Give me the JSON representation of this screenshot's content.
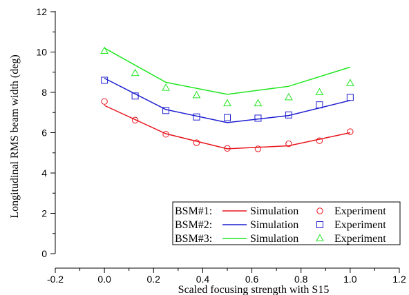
{
  "chart_data": {
    "type": "line",
    "xlabel": "Scaled focusing strength with S15",
    "ylabel": "Longitudinal RMS beam width (deg)",
    "xlim": [
      -0.2,
      1.2
    ],
    "ylim": [
      0,
      12
    ],
    "x_ticks": [
      "-0.2",
      "0.0",
      "0.2",
      "0.4",
      "0.6",
      "0.8",
      "1.0",
      "1.2"
    ],
    "y_ticks": [
      "0",
      "2",
      "4",
      "6",
      "8",
      "10",
      "12"
    ],
    "grid": false,
    "legend_position": "bottom-right",
    "series": [
      {
        "name": "BSM#1:",
        "color": "#e8141c",
        "marker": "circle",
        "line_label": "Simulation",
        "marker_label": "Experiment",
        "simulation": {
          "x": [
            0.0,
            0.25,
            0.5,
            0.75,
            1.0
          ],
          "y": [
            7.35,
            5.95,
            5.2,
            5.35,
            6.0
          ]
        },
        "experiment": {
          "x": [
            0.0,
            0.125,
            0.25,
            0.375,
            0.5,
            0.625,
            0.75,
            0.875,
            1.0
          ],
          "y": [
            7.55,
            6.62,
            5.92,
            5.5,
            5.22,
            5.2,
            5.45,
            5.6,
            6.05
          ]
        }
      },
      {
        "name": "BSM#2:",
        "color": "#1c1cd0",
        "marker": "square",
        "line_label": "Simulation",
        "marker_label": "Experiment",
        "simulation": {
          "x": [
            0.0,
            0.25,
            0.5,
            0.75,
            1.0
          ],
          "y": [
            8.7,
            7.15,
            6.5,
            6.85,
            7.6
          ]
        },
        "experiment": {
          "x": [
            0.0,
            0.125,
            0.25,
            0.375,
            0.5,
            0.625,
            0.75,
            0.875,
            1.0
          ],
          "y": [
            8.6,
            7.82,
            7.1,
            6.78,
            6.75,
            6.72,
            6.88,
            7.38,
            7.75
          ]
        }
      },
      {
        "name": "BSM#3:",
        "color": "#1ee61e",
        "marker": "triangle",
        "line_label": "Simulation",
        "marker_label": "Experiment",
        "simulation": {
          "x": [
            0.0,
            0.25,
            0.5,
            0.75,
            1.0
          ],
          "y": [
            10.2,
            8.5,
            7.9,
            8.3,
            9.25
          ]
        },
        "experiment": {
          "x": [
            0.0,
            0.125,
            0.25,
            0.375,
            0.5,
            0.625,
            0.75,
            0.875,
            1.0
          ],
          "y": [
            10.05,
            8.95,
            8.22,
            7.85,
            7.45,
            7.45,
            7.75,
            8.0,
            8.45
          ]
        }
      }
    ]
  }
}
